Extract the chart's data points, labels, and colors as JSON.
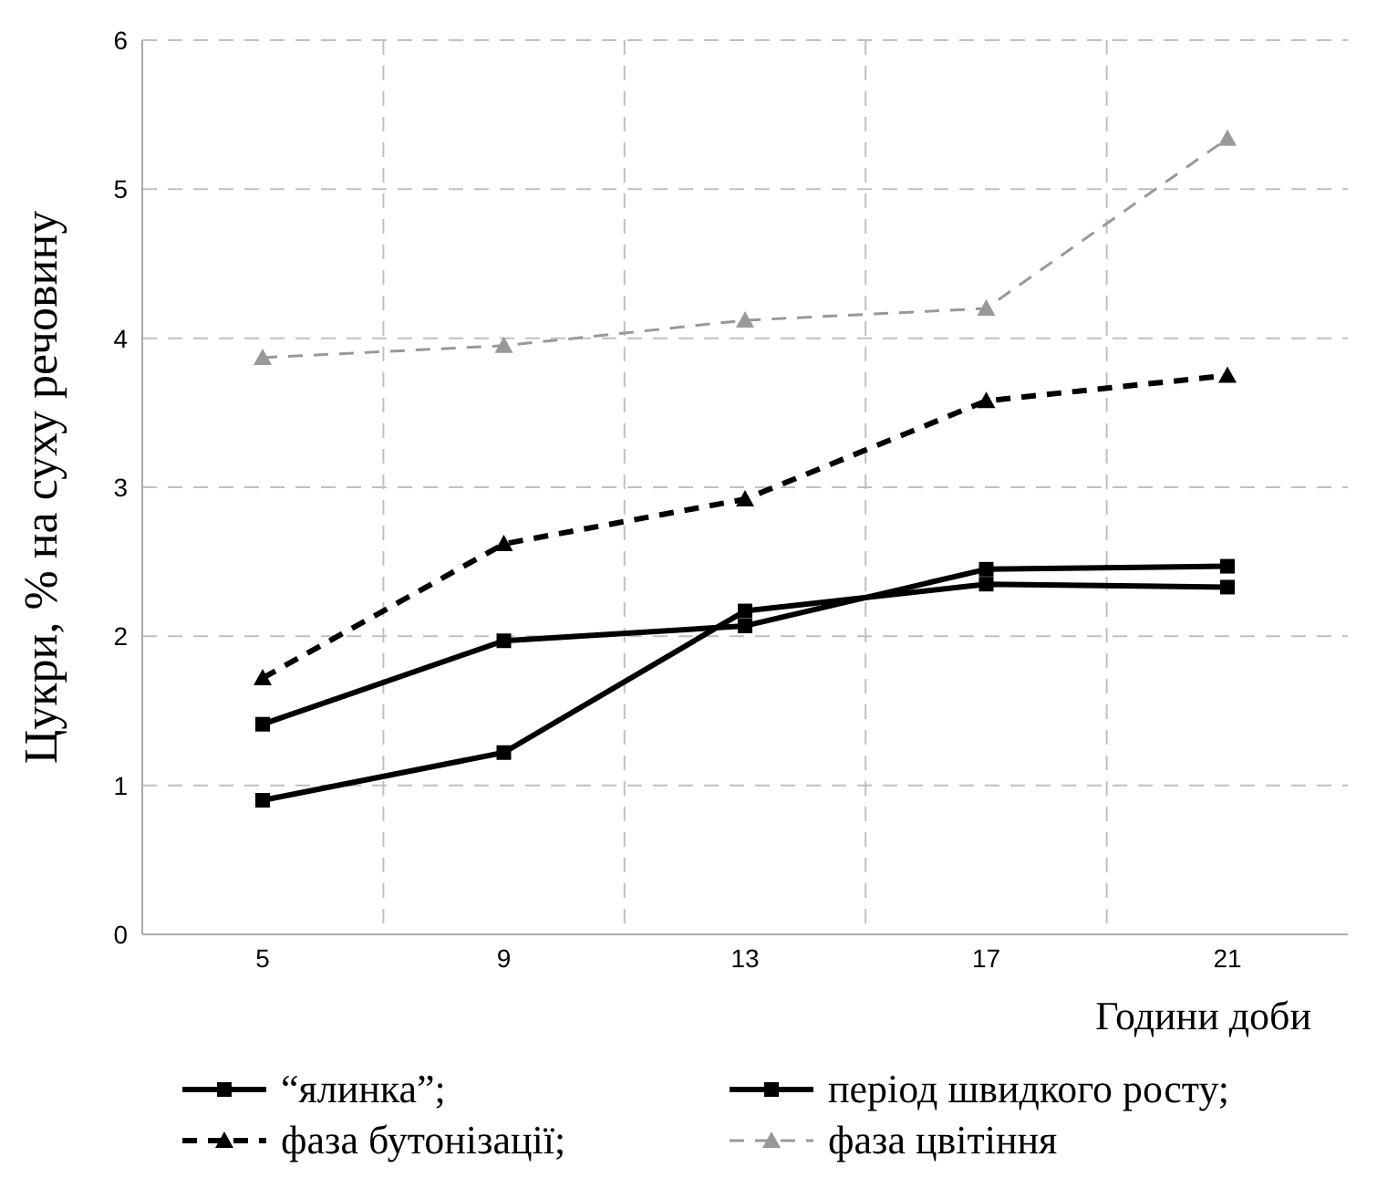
{
  "chart_data": {
    "type": "line",
    "xlabel": "Години доби",
    "ylabel": "Цукри, % на суху речовину",
    "categories": [
      "5",
      "9",
      "13",
      "17",
      "21"
    ],
    "series": [
      {
        "name": "“ялинка”;",
        "color": "#000000",
        "marker": "square",
        "line_style": "solid",
        "values": [
          0.9,
          1.22,
          2.17,
          2.35,
          2.33
        ]
      },
      {
        "name": "період швидкого росту;",
        "color": "#000000",
        "marker": "square",
        "line_style": "solid",
        "values": [
          1.41,
          1.97,
          2.07,
          2.45,
          2.47
        ]
      },
      {
        "name": "фаза бутонізації;",
        "color": "#000000",
        "marker": "triangle",
        "line_style": "dashed",
        "values": [
          1.72,
          2.62,
          2.92,
          3.58,
          3.75
        ]
      },
      {
        "name": "фаза цвітіння",
        "color": "#999999",
        "marker": "triangle",
        "line_style": "dashed",
        "values": [
          3.87,
          3.95,
          4.12,
          4.2,
          5.34
        ]
      }
    ],
    "ylim": [
      0,
      6
    ],
    "yticks": [
      0,
      1,
      2,
      3,
      4,
      5,
      6
    ],
    "grid": true,
    "legend": "bottom"
  }
}
